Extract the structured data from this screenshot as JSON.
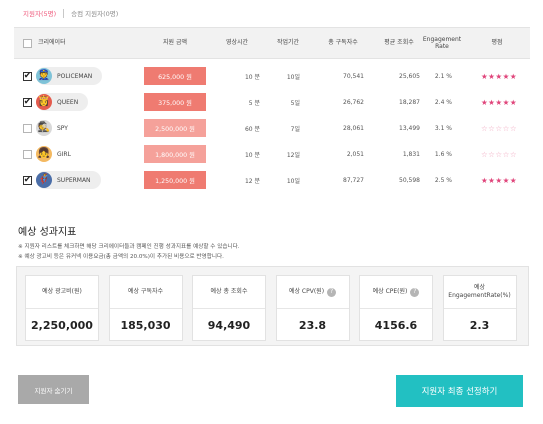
{
  "tabs": {
    "applicants": "지원자(5명)",
    "all_applicants": "승컴 지원자(0명)"
  },
  "table": {
    "headers": {
      "creator": "크리에이터",
      "amount": "지원 금액",
      "video_length": "영상시간",
      "work_period": "작업기간",
      "subscribers": "총 구독자수",
      "avg_views": "평균 조회수",
      "engagement": "Engagement Rate",
      "rating": "평점"
    },
    "rows": [
      {
        "checked": true,
        "name": "POLICEMAN",
        "avatar": "👮",
        "avatar_bg": "#7fc3d8",
        "amount": "625,000 원",
        "video_length": "10 분",
        "work_period": "10일",
        "subscribers": "70,541",
        "avg_views": "25,605",
        "engagement": "2.1 %",
        "rating": "★★★★★",
        "rating_color": "#e0457b"
      },
      {
        "checked": true,
        "name": "QUEEN",
        "avatar": "👸",
        "avatar_bg": "#e45b4d",
        "amount": "375,000 원",
        "video_length": "5 분",
        "work_period": "5일",
        "subscribers": "26,762",
        "avg_views": "18,287",
        "engagement": "2.4 %",
        "rating": "★★★★★",
        "rating_color": "#e0457b"
      },
      {
        "checked": false,
        "name": "SPY",
        "avatar": "🕵",
        "avatar_bg": "#d9d9d9",
        "amount": "2,500,000 원",
        "video_length": "60 분",
        "work_period": "7일",
        "subscribers": "28,061",
        "avg_views": "13,499",
        "engagement": "3.1 %",
        "rating": "☆☆☆☆☆",
        "rating_color": "#f0a9c0"
      },
      {
        "checked": false,
        "name": "GIRL",
        "avatar": "👧",
        "avatar_bg": "#f4b961",
        "amount": "1,800,000 원",
        "video_length": "10 분",
        "work_period": "12일",
        "subscribers": "2,051",
        "avg_views": "1,831",
        "engagement": "1.6 %",
        "rating": "☆☆☆☆☆",
        "rating_color": "#f0a9c0"
      },
      {
        "checked": true,
        "name": "SUPERMAN",
        "avatar": "🦸",
        "avatar_bg": "#4b6ea8",
        "amount": "1,250,000 원",
        "video_length": "12 분",
        "work_period": "10일",
        "subscribers": "87,727",
        "avg_views": "50,598",
        "engagement": "2.5 %",
        "rating": "★★★★★",
        "rating_color": "#e0457b"
      }
    ]
  },
  "metrics_section": {
    "title": "예상 성과지표",
    "note1": "※ 지원자 리스트를 체크하면 해당 크리에이터들과 캠페인 진행 성과지표를 예상할 수 있습니다.",
    "note2": "※ 예상 광고비 등은 유커넥 이용요금(총 금액의 20.0%)이 추가된 비용으로 반영합니다.",
    "metrics": [
      {
        "label": "예상 광고비(원)",
        "value": "2,250,000",
        "help": false
      },
      {
        "label": "예상 구독자수",
        "value": "185,030",
        "help": false
      },
      {
        "label": "예상 총 조회수",
        "value": "94,490",
        "help": false
      },
      {
        "label": "예상 CPV(원)",
        "value": "23.8",
        "help": true
      },
      {
        "label": "예상 CPE(원)",
        "value": "4156.6",
        "help": true
      },
      {
        "label": "예상 EngagementRate(%)",
        "value": "2.3",
        "help": false
      }
    ]
  },
  "buttons": {
    "hide": "지원자 숨기기",
    "final_select": "지원자 최종 선정하기"
  },
  "icons": {
    "checkbox": "checkbox-icon",
    "help": "question-icon"
  },
  "colors": {
    "accent_pink": "#ef5b7d",
    "amount_selected": "#ef7b71",
    "cta_teal": "#22c0c2"
  }
}
